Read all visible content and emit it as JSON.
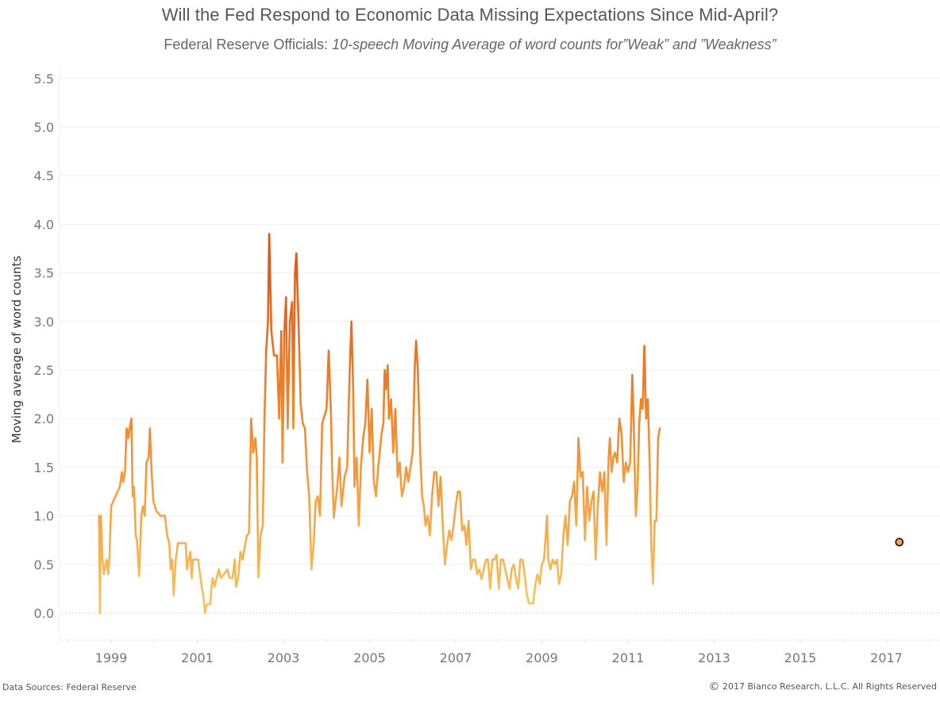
{
  "header": {
    "title": "Will the Fed Respond to Economic Data Missing Expectations Since Mid-April?",
    "subtitle_plain": "Federal Reserve Officials: ",
    "subtitle_italic": "10-speech Moving Average of word counts for”Weak” and ”Weakness”"
  },
  "footer": {
    "source": "Data Sources: Federal Reserve",
    "copyright_symbol": "©",
    "copyright": " 2017 Bianco Research, L.L.C. All Rights Reserved"
  },
  "colors": {
    "low": "#f7c55f",
    "mid": "#f28a2e",
    "high": "#e0601c",
    "peak": "#a8391f",
    "gridline": "#efefef",
    "zero_line": "#bbbbbb",
    "marker_fill": "#f5a947",
    "marker_stroke": "#222222"
  },
  "chart_data": {
    "type": "line",
    "title": "Will the Fed Respond to Economic Data Missing Expectations Since Mid-April?",
    "subtitle": "Federal Reserve Officials: 10-speech Moving Average of word counts for \"Weak\" and \"Weakness\"",
    "xlabel": "",
    "ylabel": "Moving average of word counts",
    "xlim": [
      1997.7,
      2018.1
    ],
    "ylim": [
      -0.27,
      5.6
    ],
    "x_ticks": [
      1999,
      2001,
      2003,
      2005,
      2007,
      2009,
      2011,
      2013,
      2015,
      2017
    ],
    "x_tick_labels": [
      "1999",
      "2001",
      "2003",
      "2005",
      "2007",
      "2009",
      "2011",
      "2013",
      "2015",
      "2017"
    ],
    "y_ticks": [
      0.0,
      0.5,
      1.0,
      1.5,
      2.0,
      2.5,
      3.0,
      3.5,
      4.0,
      4.5,
      5.0,
      5.5
    ],
    "y_tick_labels": [
      "0.0",
      "0.5",
      "1.0",
      "1.5",
      "2.0",
      "2.5",
      "3.0",
      "3.5",
      "4.0",
      "4.5",
      "5.0",
      "5.5"
    ],
    "grid": true,
    "legend": "none",
    "color_encoding": "line colored by value (light yellow-orange low to dark red-brown high)",
    "last_point_marker": {
      "x": 2017.3,
      "y": 0.73
    },
    "series": [
      {
        "name": "10-speech moving average",
        "points": [
          [
            1998.72,
            1.0
          ],
          [
            1998.74,
            0.0
          ],
          [
            1998.76,
            1.0
          ],
          [
            1998.8,
            0.55
          ],
          [
            1998.83,
            0.4
          ],
          [
            1998.87,
            0.5
          ],
          [
            1998.9,
            0.55
          ],
          [
            1998.93,
            0.4
          ],
          [
            1998.96,
            0.55
          ],
          [
            1999.0,
            1.1
          ],
          [
            1999.1,
            1.2
          ],
          [
            1999.2,
            1.3
          ],
          [
            1999.25,
            1.45
          ],
          [
            1999.28,
            1.35
          ],
          [
            1999.32,
            1.45
          ],
          [
            1999.36,
            1.9
          ],
          [
            1999.4,
            1.8
          ],
          [
            1999.43,
            1.9
          ],
          [
            1999.47,
            2.0
          ],
          [
            1999.5,
            1.2
          ],
          [
            1999.53,
            1.3
          ],
          [
            1999.57,
            0.8
          ],
          [
            1999.6,
            0.75
          ],
          [
            1999.65,
            0.38
          ],
          [
            1999.7,
            1.0
          ],
          [
            1999.74,
            1.1
          ],
          [
            1999.78,
            1.0
          ],
          [
            1999.82,
            1.55
          ],
          [
            1999.87,
            1.6
          ],
          [
            1999.9,
            1.9
          ],
          [
            1999.94,
            1.45
          ],
          [
            1999.98,
            1.15
          ],
          [
            2000.05,
            1.05
          ],
          [
            2000.15,
            1.0
          ],
          [
            2000.25,
            1.0
          ],
          [
            2000.3,
            0.8
          ],
          [
            2000.35,
            0.72
          ],
          [
            2000.38,
            0.45
          ],
          [
            2000.42,
            0.55
          ],
          [
            2000.45,
            0.18
          ],
          [
            2000.5,
            0.55
          ],
          [
            2000.55,
            0.72
          ],
          [
            2000.65,
            0.72
          ],
          [
            2000.73,
            0.72
          ],
          [
            2000.76,
            0.45
          ],
          [
            2000.8,
            0.55
          ],
          [
            2000.84,
            0.63
          ],
          [
            2000.87,
            0.36
          ],
          [
            2000.9,
            0.55
          ],
          [
            2000.95,
            0.55
          ],
          [
            2001.02,
            0.55
          ],
          [
            2001.05,
            0.45
          ],
          [
            2001.1,
            0.28
          ],
          [
            2001.14,
            0.18
          ],
          [
            2001.18,
            0.0
          ],
          [
            2001.22,
            0.09
          ],
          [
            2001.3,
            0.09
          ],
          [
            2001.33,
            0.27
          ],
          [
            2001.36,
            0.36
          ],
          [
            2001.4,
            0.27
          ],
          [
            2001.45,
            0.36
          ],
          [
            2001.5,
            0.45
          ],
          [
            2001.55,
            0.36
          ],
          [
            2001.62,
            0.4
          ],
          [
            2001.7,
            0.45
          ],
          [
            2001.75,
            0.36
          ],
          [
            2001.82,
            0.36
          ],
          [
            2001.87,
            0.55
          ],
          [
            2001.9,
            0.27
          ],
          [
            2001.95,
            0.36
          ],
          [
            2002.0,
            0.63
          ],
          [
            2002.05,
            0.55
          ],
          [
            2002.15,
            0.8
          ],
          [
            2002.2,
            0.82
          ],
          [
            2002.25,
            2.0
          ],
          [
            2002.3,
            1.65
          ],
          [
            2002.35,
            1.8
          ],
          [
            2002.38,
            1.6
          ],
          [
            2002.42,
            0.37
          ],
          [
            2002.47,
            0.8
          ],
          [
            2002.52,
            0.9
          ],
          [
            2002.56,
            2.0
          ],
          [
            2002.6,
            2.7
          ],
          [
            2002.64,
            3.0
          ],
          [
            2002.67,
            3.9
          ],
          [
            2002.72,
            2.9
          ],
          [
            2002.78,
            2.65
          ],
          [
            2002.85,
            2.65
          ],
          [
            2002.9,
            2.0
          ],
          [
            2002.95,
            2.9
          ],
          [
            2002.98,
            1.55
          ],
          [
            2003.02,
            2.9
          ],
          [
            2003.06,
            3.25
          ],
          [
            2003.1,
            1.9
          ],
          [
            2003.15,
            3.0
          ],
          [
            2003.2,
            3.2
          ],
          [
            2003.23,
            1.9
          ],
          [
            2003.27,
            3.5
          ],
          [
            2003.3,
            3.7
          ],
          [
            2003.35,
            3.0
          ],
          [
            2003.4,
            2.15
          ],
          [
            2003.45,
            1.95
          ],
          [
            2003.5,
            1.9
          ],
          [
            2003.55,
            1.45
          ],
          [
            2003.6,
            1.2
          ],
          [
            2003.65,
            0.45
          ],
          [
            2003.7,
            0.7
          ],
          [
            2003.75,
            1.15
          ],
          [
            2003.8,
            1.2
          ],
          [
            2003.85,
            1.0
          ],
          [
            2003.9,
            1.95
          ],
          [
            2004.0,
            2.1
          ],
          [
            2004.05,
            2.7
          ],
          [
            2004.1,
            2.1
          ],
          [
            2004.13,
            1.5
          ],
          [
            2004.17,
            0.98
          ],
          [
            2004.2,
            1.1
          ],
          [
            2004.25,
            1.3
          ],
          [
            2004.3,
            1.6
          ],
          [
            2004.35,
            1.1
          ],
          [
            2004.42,
            1.4
          ],
          [
            2004.48,
            1.5
          ],
          [
            2004.52,
            2.2
          ],
          [
            2004.55,
            2.65
          ],
          [
            2004.58,
            3.0
          ],
          [
            2004.62,
            2.3
          ],
          [
            2004.65,
            1.3
          ],
          [
            2004.7,
            1.6
          ],
          [
            2004.75,
            0.9
          ],
          [
            2004.8,
            1.5
          ],
          [
            2004.85,
            1.8
          ],
          [
            2004.9,
            1.95
          ],
          [
            2004.95,
            2.4
          ],
          [
            2005.0,
            1.65
          ],
          [
            2005.05,
            2.1
          ],
          [
            2005.1,
            1.35
          ],
          [
            2005.15,
            1.2
          ],
          [
            2005.2,
            1.5
          ],
          [
            2005.28,
            1.85
          ],
          [
            2005.32,
            1.95
          ],
          [
            2005.35,
            2.5
          ],
          [
            2005.38,
            2.3
          ],
          [
            2005.42,
            2.55
          ],
          [
            2005.45,
            2.0
          ],
          [
            2005.5,
            2.2
          ],
          [
            2005.55,
            1.65
          ],
          [
            2005.6,
            2.1
          ],
          [
            2005.65,
            1.4
          ],
          [
            2005.7,
            1.55
          ],
          [
            2005.75,
            1.2
          ],
          [
            2005.8,
            1.3
          ],
          [
            2005.85,
            1.5
          ],
          [
            2005.9,
            1.35
          ],
          [
            2005.95,
            1.5
          ],
          [
            2006.0,
            1.65
          ],
          [
            2006.05,
            2.55
          ],
          [
            2006.08,
            2.8
          ],
          [
            2006.12,
            2.5
          ],
          [
            2006.18,
            1.6
          ],
          [
            2006.22,
            1.2
          ],
          [
            2006.26,
            1.1
          ],
          [
            2006.3,
            0.9
          ],
          [
            2006.35,
            1.0
          ],
          [
            2006.4,
            0.8
          ],
          [
            2006.45,
            1.2
          ],
          [
            2006.5,
            1.45
          ],
          [
            2006.55,
            1.45
          ],
          [
            2006.6,
            1.1
          ],
          [
            2006.65,
            1.4
          ],
          [
            2006.7,
            0.9
          ],
          [
            2006.75,
            0.5
          ],
          [
            2006.8,
            0.7
          ],
          [
            2006.85,
            0.85
          ],
          [
            2006.9,
            0.75
          ],
          [
            2006.95,
            0.9
          ],
          [
            2007.0,
            1.1
          ],
          [
            2007.05,
            1.25
          ],
          [
            2007.1,
            1.25
          ],
          [
            2007.15,
            0.85
          ],
          [
            2007.2,
            0.9
          ],
          [
            2007.25,
            0.7
          ],
          [
            2007.3,
            0.95
          ],
          [
            2007.35,
            0.45
          ],
          [
            2007.4,
            0.55
          ],
          [
            2007.45,
            0.55
          ],
          [
            2007.5,
            0.4
          ],
          [
            2007.55,
            0.45
          ],
          [
            2007.6,
            0.35
          ],
          [
            2007.65,
            0.45
          ],
          [
            2007.7,
            0.55
          ],
          [
            2007.75,
            0.55
          ],
          [
            2007.8,
            0.25
          ],
          [
            2007.85,
            0.55
          ],
          [
            2007.9,
            0.55
          ],
          [
            2007.95,
            0.6
          ],
          [
            2008.0,
            0.25
          ],
          [
            2008.05,
            0.55
          ],
          [
            2008.1,
            0.55
          ],
          [
            2008.15,
            0.45
          ],
          [
            2008.2,
            0.35
          ],
          [
            2008.25,
            0.25
          ],
          [
            2008.3,
            0.45
          ],
          [
            2008.35,
            0.5
          ],
          [
            2008.4,
            0.35
          ],
          [
            2008.45,
            0.25
          ],
          [
            2008.5,
            0.55
          ],
          [
            2008.55,
            0.55
          ],
          [
            2008.6,
            0.4
          ],
          [
            2008.65,
            0.2
          ],
          [
            2008.7,
            0.1
          ],
          [
            2008.75,
            0.1
          ],
          [
            2008.8,
            0.1
          ],
          [
            2008.85,
            0.3
          ],
          [
            2008.9,
            0.4
          ],
          [
            2008.95,
            0.3
          ],
          [
            2009.0,
            0.5
          ],
          [
            2009.05,
            0.55
          ],
          [
            2009.1,
            0.85
          ],
          [
            2009.12,
            1.0
          ],
          [
            2009.15,
            0.55
          ],
          [
            2009.2,
            0.45
          ],
          [
            2009.25,
            0.55
          ],
          [
            2009.3,
            0.5
          ],
          [
            2009.35,
            0.55
          ],
          [
            2009.4,
            0.3
          ],
          [
            2009.45,
            0.4
          ],
          [
            2009.5,
            0.8
          ],
          [
            2009.55,
            1.0
          ],
          [
            2009.6,
            0.7
          ],
          [
            2009.65,
            1.15
          ],
          [
            2009.7,
            1.2
          ],
          [
            2009.75,
            1.35
          ],
          [
            2009.8,
            0.9
          ],
          [
            2009.85,
            1.8
          ],
          [
            2009.9,
            1.4
          ],
          [
            2009.95,
            1.45
          ],
          [
            2010.0,
            0.75
          ],
          [
            2010.05,
            1.3
          ],
          [
            2010.1,
            0.95
          ],
          [
            2010.15,
            1.15
          ],
          [
            2010.2,
            1.25
          ],
          [
            2010.25,
            0.55
          ],
          [
            2010.3,
            1.1
          ],
          [
            2010.35,
            1.45
          ],
          [
            2010.4,
            1.25
          ],
          [
            2010.45,
            1.45
          ],
          [
            2010.5,
            0.7
          ],
          [
            2010.55,
            1.6
          ],
          [
            2010.58,
            1.8
          ],
          [
            2010.62,
            1.45
          ],
          [
            2010.66,
            1.6
          ],
          [
            2010.7,
            1.65
          ],
          [
            2010.75,
            1.55
          ],
          [
            2010.8,
            2.0
          ],
          [
            2010.85,
            1.85
          ],
          [
            2010.9,
            1.35
          ],
          [
            2010.95,
            1.55
          ],
          [
            2011.0,
            1.45
          ],
          [
            2011.05,
            1.55
          ],
          [
            2011.1,
            2.45
          ],
          [
            2011.13,
            2.0
          ],
          [
            2011.18,
            1.0
          ],
          [
            2011.22,
            1.25
          ],
          [
            2011.26,
            1.95
          ],
          [
            2011.3,
            2.2
          ],
          [
            2011.34,
            2.1
          ],
          [
            2011.38,
            2.75
          ],
          [
            2011.42,
            2.0
          ],
          [
            2011.46,
            2.2
          ],
          [
            2011.5,
            1.6
          ],
          [
            2011.54,
            0.7
          ],
          [
            2011.58,
            0.3
          ],
          [
            2011.62,
            0.95
          ],
          [
            2011.66,
            0.95
          ],
          [
            2011.7,
            1.8
          ],
          [
            2011.74,
            1.9
          ]
        ]
      }
    ]
  }
}
